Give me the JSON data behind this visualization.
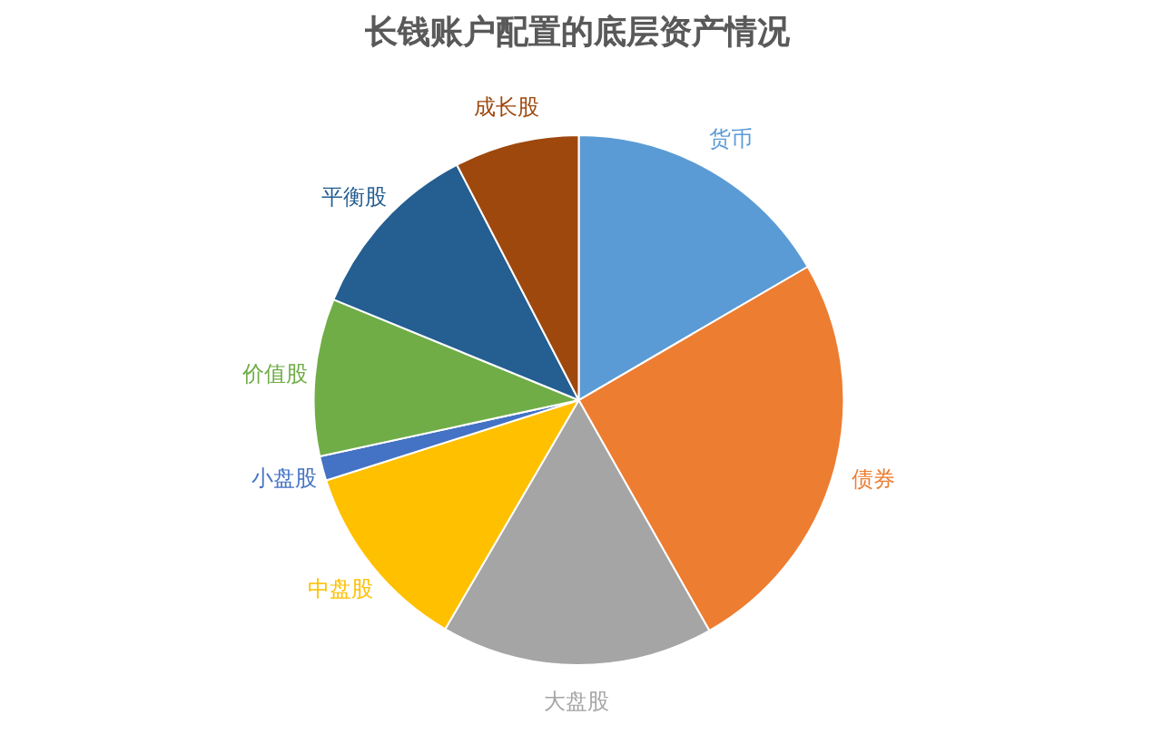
{
  "chart_data": {
    "type": "pie",
    "title": "长钱账户配置的底层资产情况",
    "categories": [
      "货币",
      "债券",
      "大盘股",
      "中盘股",
      "小盘股",
      "价值股",
      "平衡股",
      "成长股"
    ],
    "values": [
      16.6,
      25.2,
      16.6,
      11.7,
      1.5,
      9.6,
      11.2,
      7.6
    ],
    "colors": [
      "#5b9bd5",
      "#ed7d31",
      "#a5a5a5",
      "#ffc000",
      "#4472c4",
      "#70ad47",
      "#255e91",
      "#9e480e"
    ]
  }
}
